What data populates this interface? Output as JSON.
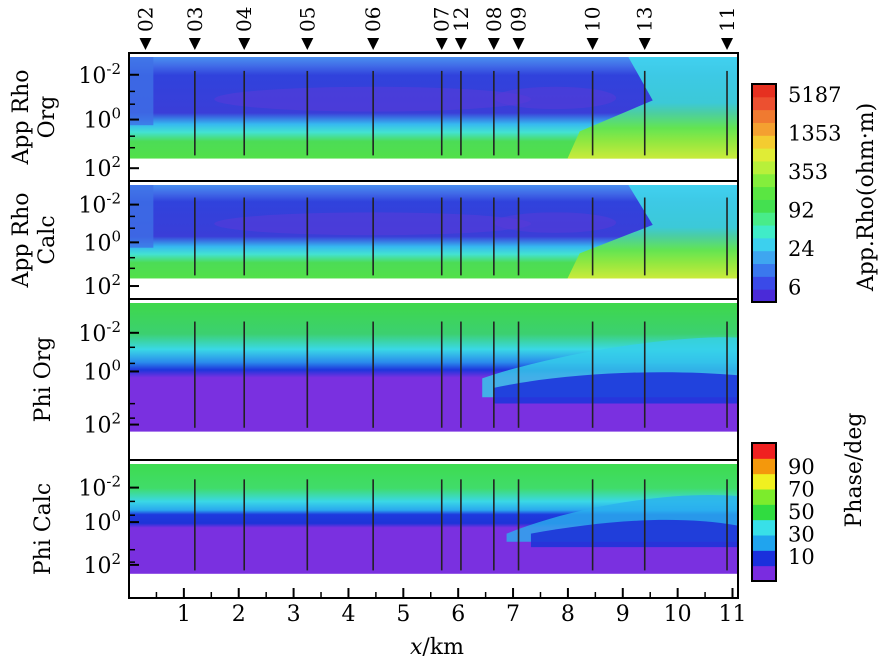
{
  "chart_data": {
    "type": "heatmap",
    "title": "",
    "xlabel_italic": "x",
    "xlabel_rest": "/km",
    "x_ticks": [
      "1",
      "2",
      "3",
      "4",
      "5",
      "6",
      "7",
      "8",
      "9",
      "10",
      "11"
    ],
    "xlim": [
      0,
      11.1
    ],
    "y_scale": "log",
    "y_tick_base": "10",
    "y_tick_exps": [
      "-2",
      "0",
      "2"
    ],
    "stations": [
      {
        "name": "02",
        "x": 0.3
      },
      {
        "name": "03",
        "x": 1.2
      },
      {
        "name": "04",
        "x": 2.1
      },
      {
        "name": "05",
        "x": 3.25
      },
      {
        "name": "06",
        "x": 4.45
      },
      {
        "name": "07",
        "x": 5.7
      },
      {
        "name": "12",
        "x": 6.05
      },
      {
        "name": "08",
        "x": 6.65
      },
      {
        "name": "09",
        "x": 7.1
      },
      {
        "name": "10",
        "x": 8.45
      },
      {
        "name": "13",
        "x": 9.4
      },
      {
        "name": "11",
        "x": 10.9
      }
    ],
    "panels": [
      {
        "id": "app-rho-org",
        "ylabel_line1": "App Rho",
        "ylabel_line2": "Org",
        "colorbar": "rho"
      },
      {
        "id": "app-rho-calc",
        "ylabel_line1": "App Rho",
        "ylabel_line2": "Calc",
        "colorbar": "rho"
      },
      {
        "id": "phi-org",
        "ylabel_line1": "Phi Org",
        "ylabel_line2": "",
        "colorbar": "phase"
      },
      {
        "id": "phi-calc",
        "ylabel_line1": "Phi Calc",
        "ylabel_line2": "",
        "colorbar": "phase"
      }
    ],
    "colorbar_rho": {
      "label": "App.Rho(ohm·m)",
      "ticks": [
        "5187",
        "1353",
        "353",
        "92",
        "24",
        "6"
      ],
      "colors": [
        "#4a2ad8",
        "#3a4ae8",
        "#3a78ee",
        "#3ea6f0",
        "#3cd0ee",
        "#40ecc8",
        "#48ec8a",
        "#44e050",
        "#5ae642",
        "#84ee3c",
        "#b8f03a",
        "#e0ec36",
        "#f4cc30",
        "#f4a030",
        "#f07a30",
        "#ec5030",
        "#e63020"
      ]
    },
    "colorbar_phase": {
      "label": "Phase/deg",
      "ticks": [
        "90",
        "70",
        "50",
        "30",
        "10"
      ],
      "colors": [
        "#7a2ce0",
        "#1a30dc",
        "#20a4ee",
        "#38e0e8",
        "#30dc40",
        "#7cec2c",
        "#f0f020",
        "#f4980c",
        "#f02020"
      ]
    }
  }
}
